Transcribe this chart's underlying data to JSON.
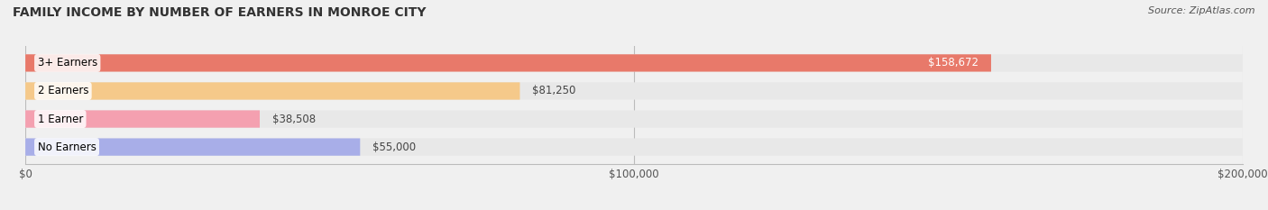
{
  "title": "FAMILY INCOME BY NUMBER OF EARNERS IN MONROE CITY",
  "source": "Source: ZipAtlas.com",
  "categories": [
    "No Earners",
    "1 Earner",
    "2 Earners",
    "3+ Earners"
  ],
  "values": [
    55000,
    38508,
    81250,
    158672
  ],
  "bar_colors": [
    "#a8aee8",
    "#f4a0b0",
    "#f5c98a",
    "#e8796a"
  ],
  "bar_edge_colors": [
    "#8888cc",
    "#e07080",
    "#e0a060",
    "#cc5544"
  ],
  "label_colors": [
    "#555588",
    "#aa4466",
    "#cc7722",
    "#ffffff"
  ],
  "value_labels": [
    "$55,000",
    "$38,508",
    "$81,250",
    "$158,672"
  ],
  "xlim": [
    0,
    200000
  ],
  "xticks": [
    0,
    100000,
    200000
  ],
  "xtick_labels": [
    "$0",
    "$100,000",
    "$200,000"
  ],
  "background_color": "#f0f0f0",
  "bar_background_color": "#e8e8e8",
  "figsize": [
    14.06,
    2.33
  ],
  "dpi": 100
}
